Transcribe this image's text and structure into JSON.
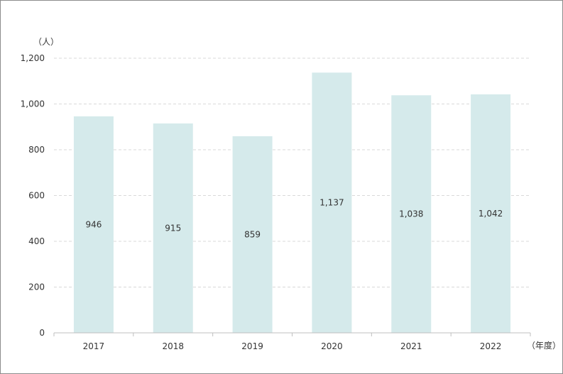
{
  "chart_data": {
    "type": "bar",
    "title": "",
    "y_unit_label": "（人）",
    "x_unit_label": "（年度）",
    "categories": [
      "2017",
      "2018",
      "2019",
      "2020",
      "2021",
      "2022"
    ],
    "values": [
      946,
      915,
      859,
      1137,
      1038,
      1042
    ],
    "data_labels": [
      "946",
      "915",
      "859",
      "1,137",
      "1,038",
      "1,042"
    ],
    "ylim": [
      0,
      1200
    ],
    "y_ticks": [
      0,
      200,
      400,
      600,
      800,
      1000,
      1200
    ],
    "y_tick_labels": [
      "0",
      "200",
      "400",
      "600",
      "800",
      "1,000",
      "1,200"
    ],
    "grid": true,
    "legend": "none",
    "bar_color": "#d5eaeb",
    "axis_color": "#bfbfbf",
    "grid_color": "#d9d9d9",
    "text_color": "#333333"
  }
}
